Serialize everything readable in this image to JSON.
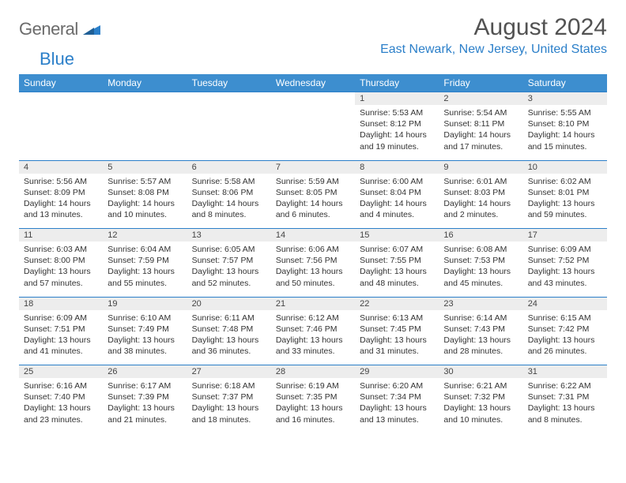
{
  "logo": {
    "text1": "General",
    "text2": "Blue"
  },
  "title": "August 2024",
  "location": "East Newark, New Jersey, United States",
  "colors": {
    "header_bg": "#3d8ecf",
    "header_text": "#ffffff",
    "accent": "#2b7fc9",
    "daynum_bg": "#ededed",
    "logo_gray": "#6b6b6b",
    "title_gray": "#525252",
    "body_text": "#333333"
  },
  "day_headers": [
    "Sunday",
    "Monday",
    "Tuesday",
    "Wednesday",
    "Thursday",
    "Friday",
    "Saturday"
  ],
  "weeks": [
    [
      null,
      null,
      null,
      null,
      {
        "n": "1",
        "sr": "5:53 AM",
        "ss": "8:12 PM",
        "dl": "14 hours and 19 minutes."
      },
      {
        "n": "2",
        "sr": "5:54 AM",
        "ss": "8:11 PM",
        "dl": "14 hours and 17 minutes."
      },
      {
        "n": "3",
        "sr": "5:55 AM",
        "ss": "8:10 PM",
        "dl": "14 hours and 15 minutes."
      }
    ],
    [
      {
        "n": "4",
        "sr": "5:56 AM",
        "ss": "8:09 PM",
        "dl": "14 hours and 13 minutes."
      },
      {
        "n": "5",
        "sr": "5:57 AM",
        "ss": "8:08 PM",
        "dl": "14 hours and 10 minutes."
      },
      {
        "n": "6",
        "sr": "5:58 AM",
        "ss": "8:06 PM",
        "dl": "14 hours and 8 minutes."
      },
      {
        "n": "7",
        "sr": "5:59 AM",
        "ss": "8:05 PM",
        "dl": "14 hours and 6 minutes."
      },
      {
        "n": "8",
        "sr": "6:00 AM",
        "ss": "8:04 PM",
        "dl": "14 hours and 4 minutes."
      },
      {
        "n": "9",
        "sr": "6:01 AM",
        "ss": "8:03 PM",
        "dl": "14 hours and 2 minutes."
      },
      {
        "n": "10",
        "sr": "6:02 AM",
        "ss": "8:01 PM",
        "dl": "13 hours and 59 minutes."
      }
    ],
    [
      {
        "n": "11",
        "sr": "6:03 AM",
        "ss": "8:00 PM",
        "dl": "13 hours and 57 minutes."
      },
      {
        "n": "12",
        "sr": "6:04 AM",
        "ss": "7:59 PM",
        "dl": "13 hours and 55 minutes."
      },
      {
        "n": "13",
        "sr": "6:05 AM",
        "ss": "7:57 PM",
        "dl": "13 hours and 52 minutes."
      },
      {
        "n": "14",
        "sr": "6:06 AM",
        "ss": "7:56 PM",
        "dl": "13 hours and 50 minutes."
      },
      {
        "n": "15",
        "sr": "6:07 AM",
        "ss": "7:55 PM",
        "dl": "13 hours and 48 minutes."
      },
      {
        "n": "16",
        "sr": "6:08 AM",
        "ss": "7:53 PM",
        "dl": "13 hours and 45 minutes."
      },
      {
        "n": "17",
        "sr": "6:09 AM",
        "ss": "7:52 PM",
        "dl": "13 hours and 43 minutes."
      }
    ],
    [
      {
        "n": "18",
        "sr": "6:09 AM",
        "ss": "7:51 PM",
        "dl": "13 hours and 41 minutes."
      },
      {
        "n": "19",
        "sr": "6:10 AM",
        "ss": "7:49 PM",
        "dl": "13 hours and 38 minutes."
      },
      {
        "n": "20",
        "sr": "6:11 AM",
        "ss": "7:48 PM",
        "dl": "13 hours and 36 minutes."
      },
      {
        "n": "21",
        "sr": "6:12 AM",
        "ss": "7:46 PM",
        "dl": "13 hours and 33 minutes."
      },
      {
        "n": "22",
        "sr": "6:13 AM",
        "ss": "7:45 PM",
        "dl": "13 hours and 31 minutes."
      },
      {
        "n": "23",
        "sr": "6:14 AM",
        "ss": "7:43 PM",
        "dl": "13 hours and 28 minutes."
      },
      {
        "n": "24",
        "sr": "6:15 AM",
        "ss": "7:42 PM",
        "dl": "13 hours and 26 minutes."
      }
    ],
    [
      {
        "n": "25",
        "sr": "6:16 AM",
        "ss": "7:40 PM",
        "dl": "13 hours and 23 minutes."
      },
      {
        "n": "26",
        "sr": "6:17 AM",
        "ss": "7:39 PM",
        "dl": "13 hours and 21 minutes."
      },
      {
        "n": "27",
        "sr": "6:18 AM",
        "ss": "7:37 PM",
        "dl": "13 hours and 18 minutes."
      },
      {
        "n": "28",
        "sr": "6:19 AM",
        "ss": "7:35 PM",
        "dl": "13 hours and 16 minutes."
      },
      {
        "n": "29",
        "sr": "6:20 AM",
        "ss": "7:34 PM",
        "dl": "13 hours and 13 minutes."
      },
      {
        "n": "30",
        "sr": "6:21 AM",
        "ss": "7:32 PM",
        "dl": "13 hours and 10 minutes."
      },
      {
        "n": "31",
        "sr": "6:22 AM",
        "ss": "7:31 PM",
        "dl": "13 hours and 8 minutes."
      }
    ]
  ],
  "labels": {
    "sunrise": "Sunrise:",
    "sunset": "Sunset:",
    "daylight": "Daylight:"
  }
}
